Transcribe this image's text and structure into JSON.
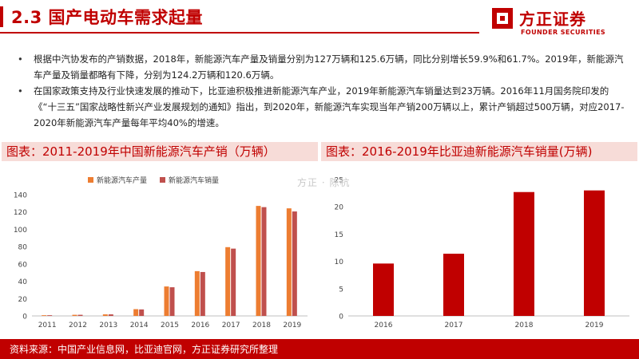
{
  "header": {
    "title": "2.3 国产电动车需求起量",
    "logo_cn": "方正证券",
    "logo_en": "FOUNDER SECURITIES"
  },
  "bullets": [
    "根据中汽协发布的产销数据，2018年，新能源汽车产量及销量分别为127万辆和125.6万辆，同比分别增长59.9%和61.7%。2019年，新能源汽车产量及销量都略有下降，分别为124.2万辆和120.6万辆。",
    "在国家政策支持及行业快速发展的推动下，比亚迪积极推进新能源汽车产业，2019年新能源汽车销量达到23万辆。2016年11月国务院印发的《“十三五”国家战略性新兴产业发展规划的通知》指出，到2020年，新能源汽车实现当年产销200万辆以上，累计产销超过500万辆，对应2017-2020年新能源汽车产量每年平均40%的增速。"
  ],
  "watermark": "方正 · 陈杭",
  "footer": {
    "source": "资料来源：中国产业信息网，比亚迪官网，方正证券研究所整理"
  },
  "colors": {
    "brand_red": "#c00000",
    "production": "#ed7d31",
    "sales": "#c0504d",
    "byd_bar": "#c00000"
  },
  "chart_data": [
    {
      "type": "bar",
      "title": "图表：2011-2019年中国新能源汽车产销（万辆）",
      "categories": [
        "2011",
        "2012",
        "2013",
        "2014",
        "2015",
        "2016",
        "2017",
        "2018",
        "2019"
      ],
      "series": [
        {
          "name": "新能源汽车产量",
          "values": [
            0.8,
            1.3,
            1.8,
            7.8,
            34.0,
            51.7,
            79.4,
            127.0,
            124.2
          ]
        },
        {
          "name": "新能源汽车销量",
          "values": [
            0.8,
            1.3,
            1.8,
            7.5,
            33.1,
            50.7,
            77.7,
            125.6,
            120.6
          ]
        }
      ],
      "yticks": [
        0,
        20,
        40,
        60,
        80,
        100,
        120,
        140
      ],
      "ylim": [
        0,
        140
      ],
      "legend": "top-left",
      "grid": false
    },
    {
      "type": "bar",
      "title": "图表：2016-2019年比亚迪新能源汽车销量(万辆)",
      "categories": [
        "2016",
        "2017",
        "2018",
        "2019"
      ],
      "values": [
        9.6,
        11.4,
        22.7,
        23.0
      ],
      "yticks": [
        0,
        5,
        10,
        15,
        20,
        25
      ],
      "ylim": [
        0,
        25
      ],
      "grid": false
    }
  ]
}
